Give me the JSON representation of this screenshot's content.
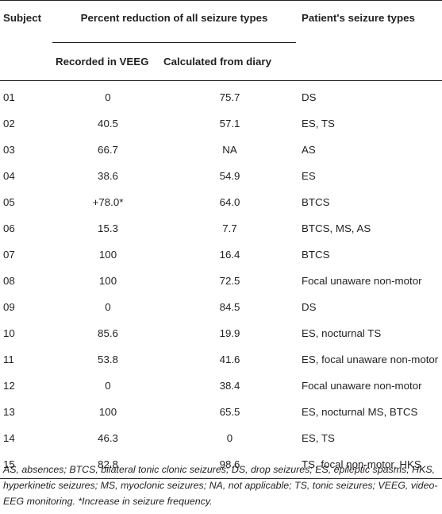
{
  "table": {
    "headers": {
      "subject": "Subject",
      "percent_reduction": "Percent reduction of all seizure types",
      "patient_types": "Patient's seizure types",
      "recorded": "Recorded in VEEG",
      "calculated": "Calculated from diary"
    },
    "rows": [
      {
        "subject": "01",
        "recorded": "0",
        "calculated": "75.7",
        "types": "DS"
      },
      {
        "subject": "02",
        "recorded": "40.5",
        "calculated": "57.1",
        "types": "ES, TS"
      },
      {
        "subject": "03",
        "recorded": "66.7",
        "calculated": "NA",
        "types": "AS"
      },
      {
        "subject": "04",
        "recorded": "38.6",
        "calculated": "54.9",
        "types": "ES"
      },
      {
        "subject": "05",
        "recorded": "+78.0*",
        "calculated": "64.0",
        "types": "BTCS"
      },
      {
        "subject": "06",
        "recorded": "15.3",
        "calculated": "7.7",
        "types": "BTCS, MS, AS"
      },
      {
        "subject": "07",
        "recorded": "100",
        "calculated": "16.4",
        "types": "BTCS"
      },
      {
        "subject": "08",
        "recorded": "100",
        "calculated": "72.5",
        "types": "Focal unaware non-motor"
      },
      {
        "subject": "09",
        "recorded": "0",
        "calculated": "84.5",
        "types": "DS"
      },
      {
        "subject": "10",
        "recorded": "85.6",
        "calculated": "19.9",
        "types": "ES, nocturnal TS"
      },
      {
        "subject": "11",
        "recorded": "53.8",
        "calculated": "41.6",
        "types": "ES, focal unaware non-motor"
      },
      {
        "subject": "12",
        "recorded": "0",
        "calculated": "38.4",
        "types": "Focal unaware non-motor"
      },
      {
        "subject": "13",
        "recorded": "100",
        "calculated": "65.5",
        "types": "ES, nocturnal MS, BTCS"
      },
      {
        "subject": "14",
        "recorded": "46.3",
        "calculated": "0",
        "types": "ES, TS"
      },
      {
        "subject": "15",
        "recorded": "82.8",
        "calculated": "98.6",
        "types": "TS, focal non-motor, HKS"
      }
    ]
  },
  "footnote": "AS, absences; BTCS, bilateral tonic clonic seizures; DS, drop seizures; ES, epileptic spasms; HKS, hyperkinetic seizures; MS, myoclonic seizures; NA, not applicable; TS, tonic seizures; VEEG, video-EEG monitoring. *Increase in seizure frequency."
}
